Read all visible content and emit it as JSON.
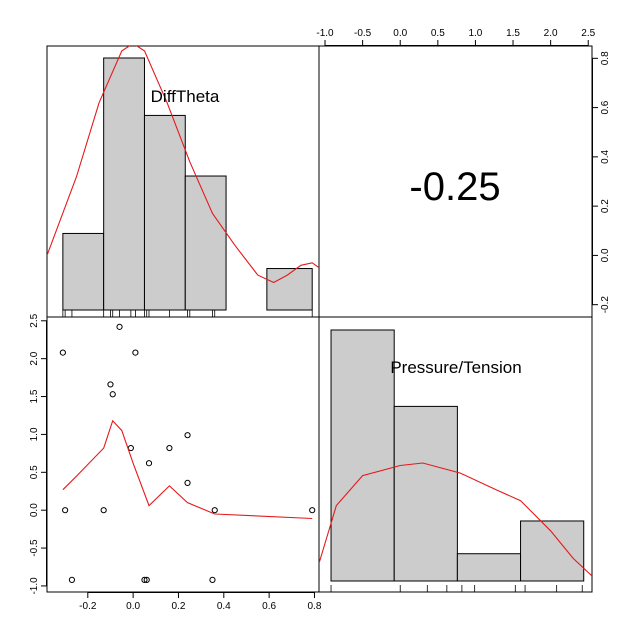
{
  "chart_data": {
    "type": "pairs",
    "variables": [
      "DiffTheta",
      "Pressure/Tension"
    ],
    "correlation_label": "-0.25",
    "x_range_var1": [
      -0.38,
      0.82
    ],
    "x_range_var2": [
      -1.08,
      2.55
    ],
    "y_range_density": [
      -0.25,
      0.85
    ],
    "y_range_var2": [
      -1.08,
      2.55
    ],
    "ticks_var1": [
      "-0.2",
      "0.0",
      "0.2",
      "0.4",
      "0.6",
      "0.8"
    ],
    "ticks_var2_top": [
      "-1.0",
      "-0.5",
      "0.0",
      "0.5",
      "1.0",
      "1.5",
      "2.0",
      "2.5"
    ],
    "ticks_var2_left": [
      "-1.0",
      "-0.5",
      "0.0",
      "0.5",
      "1.0",
      "1.5",
      "2.0",
      "2.5"
    ],
    "ticks_density_right": [
      "-0.2",
      "0.0",
      "0.2",
      "0.4",
      "0.6",
      "0.8"
    ],
    "hist_var1": {
      "breaks": [
        -0.31,
        -0.13,
        0.05,
        0.23,
        0.41,
        0.59,
        0.79
      ],
      "heights": [
        0.24,
        0.79,
        0.61,
        0.42,
        0.0,
        0.13
      ]
    },
    "hist_var2": {
      "breaks": [
        -0.92,
        -0.08,
        0.76,
        1.6,
        2.44
      ],
      "heights": [
        0.92,
        0.64,
        0.1,
        0.22
      ]
    },
    "points": [
      {
        "x": -0.31,
        "y": 2.08
      },
      {
        "x": -0.3,
        "y": 0.0
      },
      {
        "x": -0.27,
        "y": -0.92
      },
      {
        "x": -0.13,
        "y": 0.0
      },
      {
        "x": -0.1,
        "y": 1.66
      },
      {
        "x": -0.09,
        "y": 1.53
      },
      {
        "x": -0.06,
        "y": 2.42
      },
      {
        "x": -0.01,
        "y": 0.82
      },
      {
        "x": 0.01,
        "y": 2.08
      },
      {
        "x": 0.05,
        "y": -0.92
      },
      {
        "x": 0.06,
        "y": -0.92
      },
      {
        "x": 0.07,
        "y": 0.62
      },
      {
        "x": 0.16,
        "y": 0.82
      },
      {
        "x": 0.24,
        "y": 0.99
      },
      {
        "x": 0.24,
        "y": 0.36
      },
      {
        "x": 0.35,
        "y": -0.92
      },
      {
        "x": 0.36,
        "y": 0.0
      },
      {
        "x": 0.79,
        "y": 0.0
      }
    ],
    "smoother": [
      {
        "x": -0.31,
        "y": 0.27
      },
      {
        "x": -0.25,
        "y": 0.45
      },
      {
        "x": -0.13,
        "y": 0.82
      },
      {
        "x": -0.09,
        "y": 1.18
      },
      {
        "x": -0.05,
        "y": 1.05
      },
      {
        "x": 0.0,
        "y": 0.62
      },
      {
        "x": 0.07,
        "y": 0.06
      },
      {
        "x": 0.16,
        "y": 0.32
      },
      {
        "x": 0.24,
        "y": 0.1
      },
      {
        "x": 0.36,
        "y": -0.05
      },
      {
        "x": 0.79,
        "y": -0.11
      }
    ],
    "density_var1": [
      {
        "x": -0.38,
        "y": 0.0
      },
      {
        "x": -0.25,
        "y": 0.32
      },
      {
        "x": -0.15,
        "y": 0.62
      },
      {
        "x": -0.05,
        "y": 0.83
      },
      {
        "x": 0.0,
        "y": 0.86
      },
      {
        "x": 0.05,
        "y": 0.83
      },
      {
        "x": 0.15,
        "y": 0.62
      },
      {
        "x": 0.25,
        "y": 0.38
      },
      {
        "x": 0.35,
        "y": 0.17
      },
      {
        "x": 0.45,
        "y": 0.04
      },
      {
        "x": 0.55,
        "y": -0.08
      },
      {
        "x": 0.62,
        "y": -0.11
      },
      {
        "x": 0.68,
        "y": -0.08
      },
      {
        "x": 0.74,
        "y": -0.04
      },
      {
        "x": 0.79,
        "y": -0.03
      },
      {
        "x": 0.82,
        "y": -0.05
      }
    ],
    "density_var2": [
      {
        "x": -1.08,
        "y": 0.07
      },
      {
        "x": -0.85,
        "y": 0.3
      },
      {
        "x": -0.5,
        "y": 0.42
      },
      {
        "x": 0.0,
        "y": 0.46
      },
      {
        "x": 0.3,
        "y": 0.47
      },
      {
        "x": 0.8,
        "y": 0.43
      },
      {
        "x": 1.3,
        "y": 0.36
      },
      {
        "x": 1.6,
        "y": 0.32
      },
      {
        "x": 2.0,
        "y": 0.2
      },
      {
        "x": 2.3,
        "y": 0.09
      },
      {
        "x": 2.55,
        "y": 0.02
      }
    ],
    "rug_var1": [
      -0.31,
      -0.3,
      -0.27,
      -0.13,
      -0.1,
      -0.09,
      -0.06,
      -0.01,
      0.01,
      0.05,
      0.06,
      0.07,
      0.16,
      0.24,
      0.25,
      0.35,
      0.36,
      0.79
    ],
    "rug_var2": [
      -0.92,
      0.0,
      0.36,
      0.62,
      0.82,
      0.99,
      1.53,
      1.66,
      2.08,
      2.42
    ],
    "colors": {
      "density": "#e41a1c",
      "bars": "#cccccc",
      "points": "#000000"
    }
  }
}
